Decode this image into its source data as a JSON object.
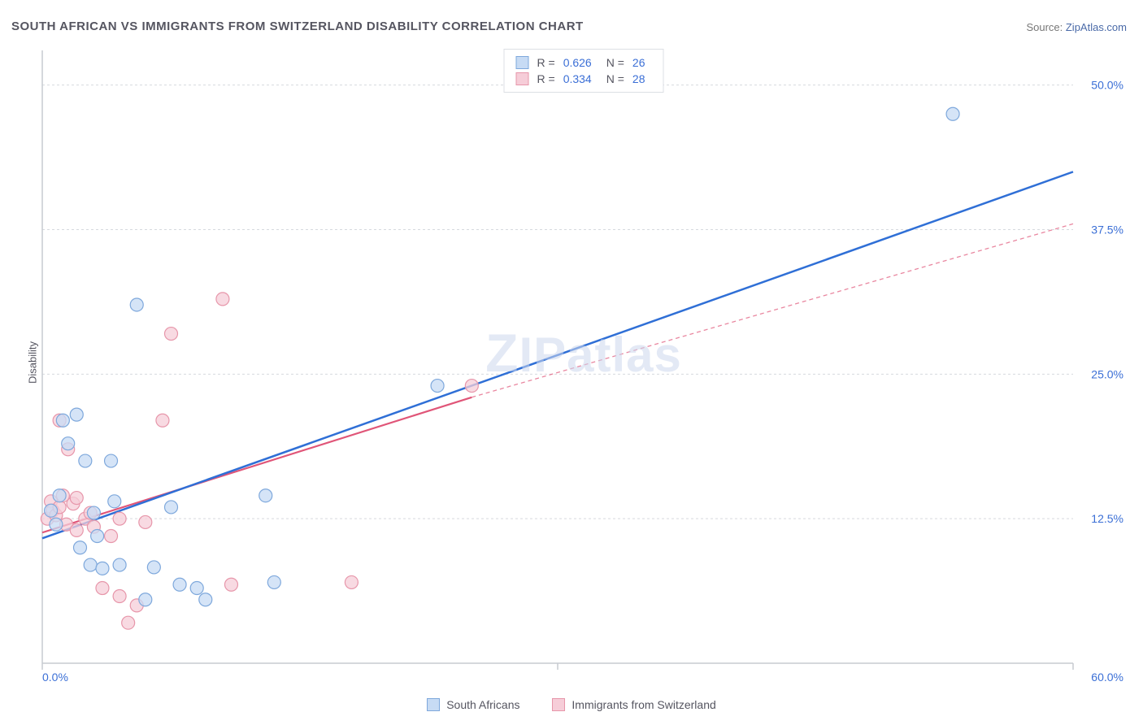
{
  "title": "SOUTH AFRICAN VS IMMIGRANTS FROM SWITZERLAND DISABILITY CORRELATION CHART",
  "source_label": "Source: ",
  "source_value": "ZipAtlas.com",
  "ylabel": "Disability",
  "watermark": "ZIPatlas",
  "chart": {
    "type": "scatter",
    "xlim": [
      0,
      60
    ],
    "ylim": [
      0,
      53
    ],
    "x_axis_labels": [
      {
        "v": 0,
        "label": "0.0%"
      },
      {
        "v": 60,
        "label": "60.0%"
      }
    ],
    "y_axis_labels": [
      {
        "v": 12.5,
        "label": "12.5%"
      },
      {
        "v": 25.0,
        "label": "25.0%"
      },
      {
        "v": 37.5,
        "label": "37.5%"
      },
      {
        "v": 50.0,
        "label": "50.0%"
      }
    ],
    "x_ticks_minor": [
      0,
      30,
      60
    ],
    "grid_y": [
      12.5,
      25.0,
      37.5,
      50.0
    ],
    "grid_color": "#d6d9de",
    "axis_color": "#c7cbd1",
    "label_color": "#3b6fd6",
    "background_color": "#ffffff",
    "marker_radius": 8,
    "marker_stroke_width": 1.2,
    "series": [
      {
        "id": "south_africans",
        "name": "South Africans",
        "fill": "#c7dbf4",
        "stroke": "#7ea8dc",
        "line_color": "#2f6fd6",
        "line_width": 2.5,
        "line_dash": null,
        "R": "0.626",
        "N": "26",
        "trend": {
          "x1": 0,
          "y1": 10.8,
          "x2": 60,
          "y2": 42.5
        },
        "points": [
          [
            0.5,
            13.2
          ],
          [
            0.8,
            12.0
          ],
          [
            1.0,
            14.5
          ],
          [
            1.2,
            21.0
          ],
          [
            1.5,
            19.0
          ],
          [
            2.0,
            21.5
          ],
          [
            2.2,
            10.0
          ],
          [
            2.5,
            17.5
          ],
          [
            2.8,
            8.5
          ],
          [
            3.0,
            13.0
          ],
          [
            3.2,
            11.0
          ],
          [
            3.5,
            8.2
          ],
          [
            4.0,
            17.5
          ],
          [
            4.2,
            14.0
          ],
          [
            4.5,
            8.5
          ],
          [
            5.5,
            31.0
          ],
          [
            6.0,
            5.5
          ],
          [
            6.5,
            8.3
          ],
          [
            7.5,
            13.5
          ],
          [
            8.0,
            6.8
          ],
          [
            9.0,
            6.5
          ],
          [
            9.5,
            5.5
          ],
          [
            13.0,
            14.5
          ],
          [
            13.5,
            7.0
          ],
          [
            23.0,
            24.0
          ],
          [
            53.0,
            47.5
          ]
        ]
      },
      {
        "id": "immigrants_switzerland",
        "name": "Immigrants from Switzerland",
        "fill": "#f6cdd8",
        "stroke": "#e796aa",
        "line_color": "#e05578",
        "line_width": 2.2,
        "line_dash": "5,4",
        "R": "0.334",
        "N": "28",
        "trend_solid": {
          "x1": 0,
          "y1": 11.3,
          "x2": 25,
          "y2": 23.0
        },
        "trend_dash": {
          "x1": 25,
          "y1": 23.0,
          "x2": 60,
          "y2": 38.0
        },
        "points": [
          [
            0.3,
            12.5
          ],
          [
            0.5,
            14.0
          ],
          [
            0.6,
            13.2
          ],
          [
            0.8,
            12.8
          ],
          [
            1.0,
            13.5
          ],
          [
            1.0,
            21.0
          ],
          [
            1.2,
            14.5
          ],
          [
            1.4,
            12.0
          ],
          [
            1.5,
            18.5
          ],
          [
            1.8,
            13.8
          ],
          [
            2.0,
            11.5
          ],
          [
            2.0,
            14.3
          ],
          [
            2.5,
            12.5
          ],
          [
            2.8,
            13.0
          ],
          [
            3.0,
            11.8
          ],
          [
            3.5,
            6.5
          ],
          [
            4.0,
            11.0
          ],
          [
            4.5,
            5.8
          ],
          [
            4.5,
            12.5
          ],
          [
            5.0,
            3.5
          ],
          [
            5.5,
            5.0
          ],
          [
            6.0,
            12.2
          ],
          [
            7.0,
            21.0
          ],
          [
            7.5,
            28.5
          ],
          [
            10.5,
            31.5
          ],
          [
            11.0,
            6.8
          ],
          [
            18.0,
            7.0
          ],
          [
            25.0,
            24.0
          ]
        ]
      }
    ]
  },
  "legend_top_prefix_R": "R =",
  "legend_top_prefix_N": "N ="
}
